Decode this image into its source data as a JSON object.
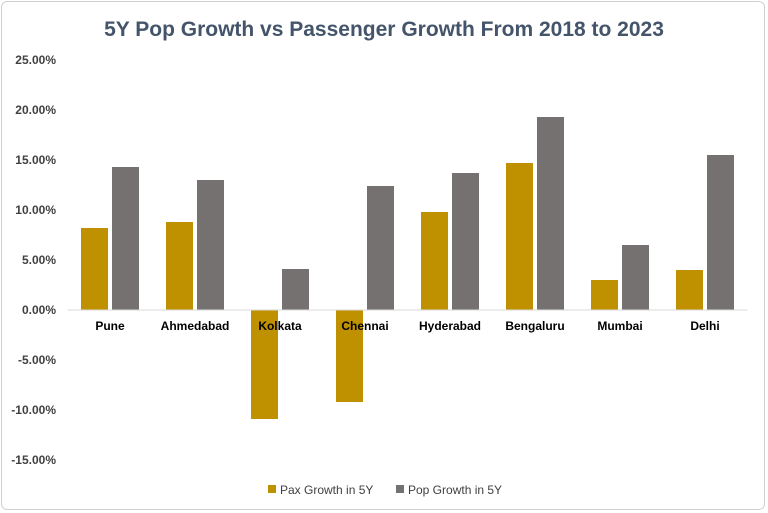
{
  "chart_data": {
    "type": "bar",
    "title": "5Y Pop Growth vs Passenger Growth From 2018 to 2023",
    "xlabel": "",
    "ylabel": "",
    "categories": [
      "Pune",
      "Ahmedabad",
      "Kolkata",
      "Chennai",
      "Hyderabad",
      "Bengaluru",
      "Mumbai",
      "Delhi"
    ],
    "series": [
      {
        "name": "Pax Growth in 5Y",
        "color": "#BF9000",
        "values": [
          8.2,
          8.8,
          -10.9,
          -9.2,
          9.8,
          14.7,
          3.0,
          4.0
        ]
      },
      {
        "name": "Pop Growth in 5Y",
        "color": "#767171",
        "values": [
          14.3,
          13.0,
          4.1,
          12.4,
          13.7,
          19.3,
          6.5,
          15.5
        ]
      }
    ],
    "ylim": [
      -15,
      25
    ],
    "yticks": [
      "-15.00%",
      "-10.00%",
      "-5.00%",
      "0.00%",
      "5.00%",
      "10.00%",
      "15.00%",
      "20.00%",
      "25.00%"
    ],
    "ytick_values": [
      -15,
      -10,
      -5,
      0,
      5,
      10,
      15,
      20,
      25
    ],
    "grid": false,
    "legend_position": "bottom"
  }
}
